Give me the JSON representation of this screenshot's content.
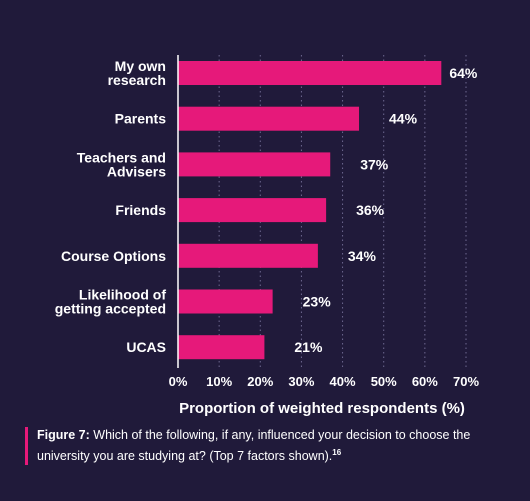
{
  "chart_data": {
    "type": "bar",
    "orientation": "horizontal",
    "categories": [
      [
        "My own",
        "research"
      ],
      [
        "Parents"
      ],
      [
        "Teachers and",
        "Advisers"
      ],
      [
        "Friends"
      ],
      [
        "Course Options"
      ],
      [
        "Likelihood of",
        "getting accepted"
      ],
      [
        "UCAS"
      ]
    ],
    "values": [
      64,
      44,
      37,
      36,
      34,
      23,
      21
    ],
    "data_labels": [
      "64%",
      "44%",
      "37%",
      "36%",
      "34%",
      "23%",
      "21%"
    ],
    "xlim": [
      0,
      70
    ],
    "xticks": [
      0,
      10,
      20,
      30,
      40,
      50,
      60,
      70
    ],
    "xtick_labels": [
      "0%",
      "10%",
      "20%",
      "30%",
      "40%",
      "50%",
      "60%",
      "70%"
    ],
    "xlabel": "Proportion of weighted respondents (%)",
    "grid": "vertical dotted",
    "bar_color": "#e6197a",
    "background_color": "#201a3a"
  },
  "caption": {
    "label": "Figure 7:",
    "text": " Which of the following, if any, influenced your decision to choose the university you are studying at? (Top 7 factors shown).",
    "footnote": "16"
  }
}
